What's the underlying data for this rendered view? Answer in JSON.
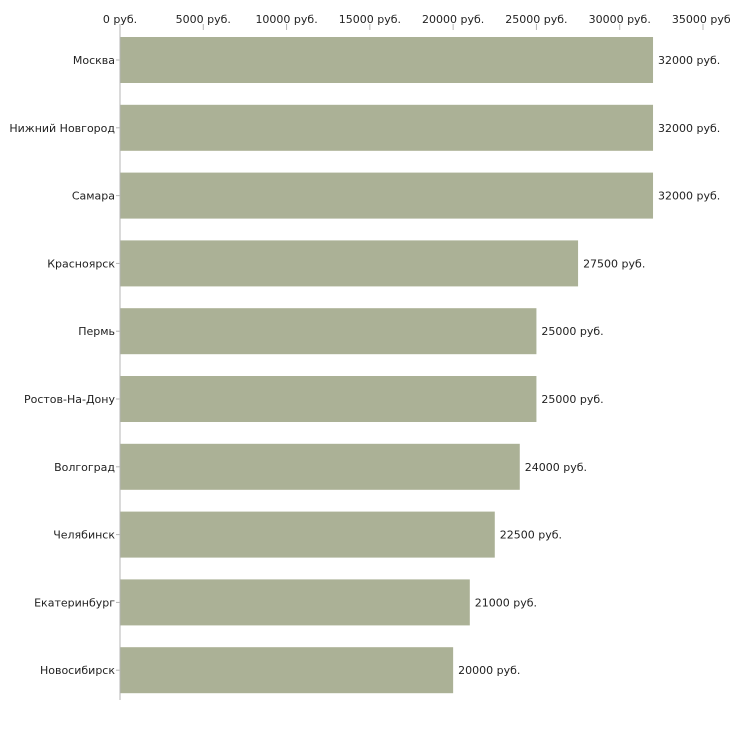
{
  "chart_data": {
    "type": "bar",
    "orientation": "horizontal",
    "title": "",
    "xlabel": "",
    "ylabel": "",
    "unit_suffix": " руб.",
    "xlim": [
      0,
      35000
    ],
    "ticks": [
      0,
      5000,
      10000,
      15000,
      20000,
      25000,
      30000,
      35000
    ],
    "tick_labels": [
      "0 руб.",
      "5000 руб.",
      "10000 руб.",
      "15000 руб.",
      "20000 руб.",
      "25000 руб.",
      "30000 руб.",
      "35000 руб."
    ],
    "categories": [
      "Москва",
      "Нижний Новгород",
      "Самара",
      "Красноярск",
      "Пермь",
      "Ростов-На-Дону",
      "Волгоград",
      "Челябинск",
      "Екатеринбург",
      "Новосибирск"
    ],
    "values": [
      32000,
      32000,
      32000,
      27500,
      25000,
      25000,
      24000,
      22500,
      21000,
      20000
    ],
    "value_labels": [
      "32000 руб.",
      "32000 руб.",
      "32000 руб.",
      "27500 руб.",
      "25000 руб.",
      "25000 руб.",
      "24000 руб.",
      "22500 руб.",
      "21000 руб.",
      "20000 руб."
    ],
    "grid": false,
    "axis_position": "top",
    "bar_color": "#abb196",
    "axis_color": "#b5b5b5"
  }
}
